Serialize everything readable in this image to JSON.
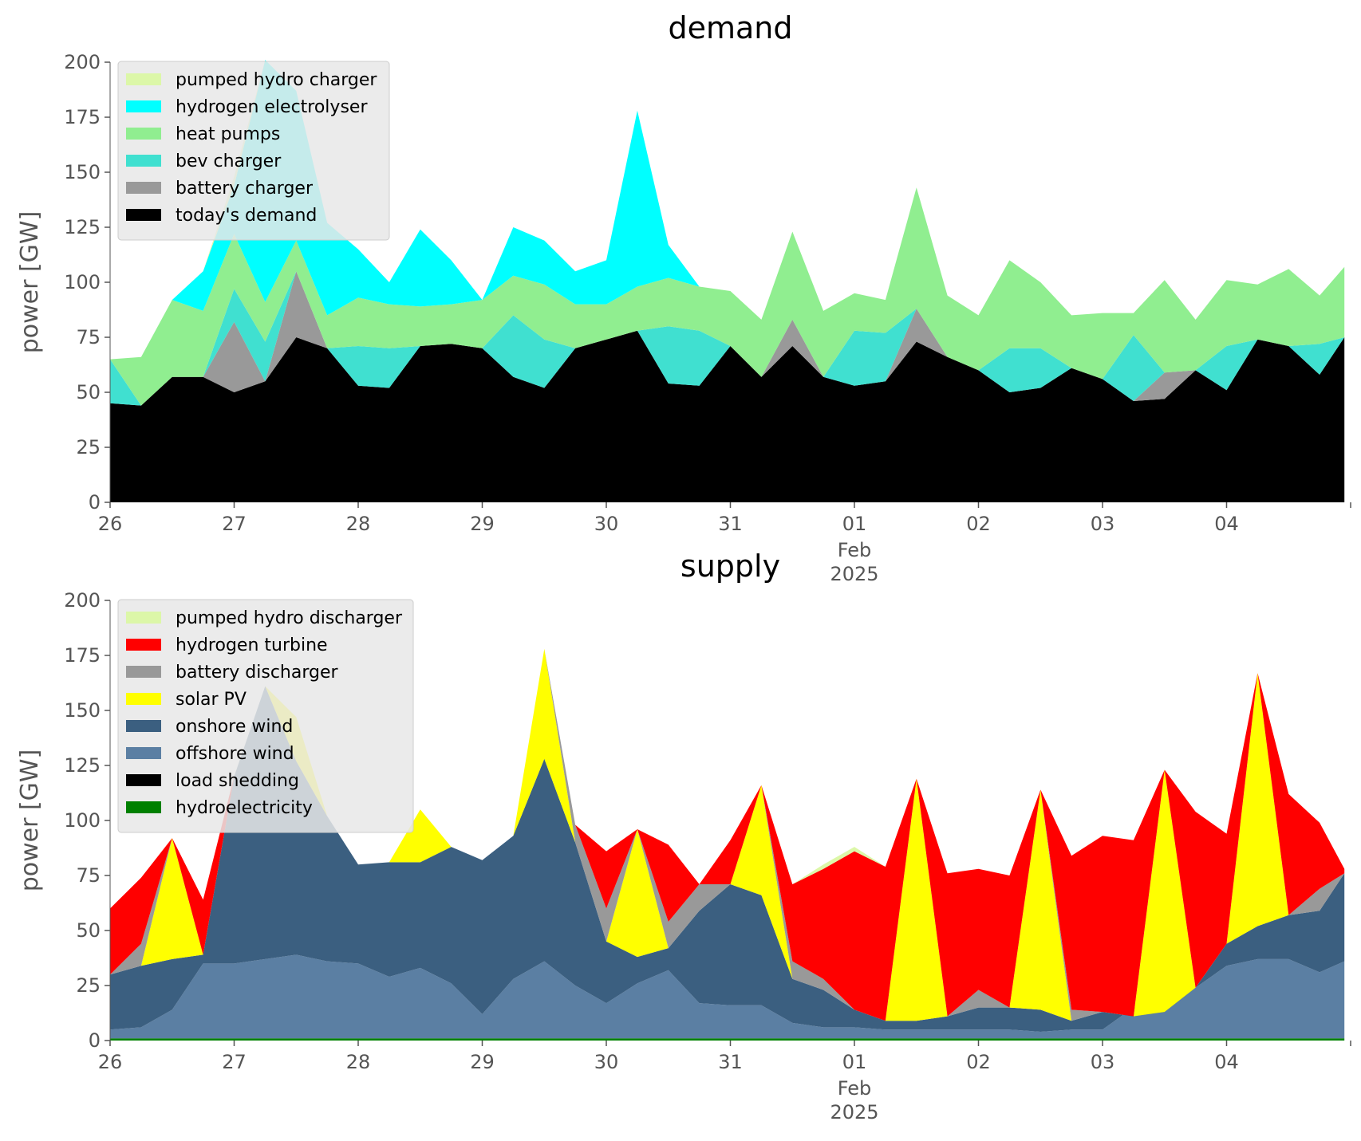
{
  "chart_data": [
    {
      "type": "area",
      "stacked": true,
      "title": "demand",
      "ylabel": "power [GW]",
      "xlabel": "",
      "ylim": [
        0,
        200
      ],
      "yticks": [
        0,
        25,
        50,
        75,
        100,
        125,
        150,
        175,
        200
      ],
      "xlim": [
        "2025-01-26",
        "2025-02-05"
      ],
      "xtick_labels": [
        "26",
        "27",
        "28",
        "29",
        "30",
        "31",
        "01",
        "02",
        "03",
        "04"
      ],
      "xtick_sublabel": {
        "label": "01",
        "month": "Feb",
        "year": "2025"
      },
      "legend_position": "upper-left",
      "grid": false,
      "x_days": [
        0,
        0.25,
        0.5,
        0.75,
        1,
        1.25,
        1.5,
        1.75,
        2,
        2.25,
        2.5,
        2.75,
        3,
        3.25,
        3.5,
        3.75,
        4,
        4.25,
        4.5,
        4.75,
        5,
        5.25,
        5.5,
        5.75,
        6,
        6.25,
        6.5,
        6.75,
        7,
        7.25,
        7.5,
        7.75,
        8,
        8.25,
        8.5,
        8.75,
        9,
        9.25,
        9.5,
        9.75,
        9.95
      ],
      "series": [
        {
          "name": "today's demand",
          "color": "#000000",
          "values": [
            45,
            44,
            57,
            57,
            50,
            55,
            75,
            70,
            53,
            52,
            71,
            72,
            70,
            57,
            52,
            70,
            74,
            78,
            54,
            53,
            71,
            57,
            71,
            57,
            53,
            55,
            73,
            66,
            60,
            50,
            52,
            61,
            56,
            46,
            47,
            60,
            51,
            74,
            71,
            58,
            75
          ]
        },
        {
          "name": "battery charger",
          "color": "#999999",
          "values": [
            0,
            0,
            0,
            0,
            32,
            0,
            30,
            0,
            0,
            0,
            0,
            0,
            0,
            0,
            0,
            0,
            0,
            0,
            0,
            0,
            0,
            0,
            12,
            0,
            0,
            0,
            15,
            0,
            0,
            0,
            0,
            0,
            0,
            0,
            12,
            0,
            0,
            0,
            0,
            0,
            0
          ]
        },
        {
          "name": "bev charger",
          "color": "#40E0D0",
          "values": [
            20,
            0,
            0,
            0,
            15,
            18,
            0,
            0,
            18,
            18,
            0,
            0,
            0,
            28,
            22,
            0,
            0,
            0,
            26,
            25,
            0,
            0,
            0,
            0,
            25,
            22,
            0,
            0,
            0,
            20,
            18,
            0,
            0,
            30,
            0,
            0,
            20,
            0,
            0,
            14,
            0
          ]
        },
        {
          "name": "heat pumps",
          "color": "#90EE90",
          "values": [
            0,
            22,
            35,
            30,
            25,
            18,
            14,
            15,
            22,
            20,
            18,
            18,
            22,
            18,
            25,
            20,
            16,
            20,
            22,
            20,
            25,
            26,
            40,
            30,
            17,
            15,
            55,
            28,
            25,
            40,
            30,
            24,
            30,
            10,
            42,
            23,
            30,
            25,
            35,
            22,
            32
          ]
        },
        {
          "name": "hydrogen electrolyser",
          "color": "#00FFFF",
          "values": [
            0,
            0,
            0,
            18,
            22,
            110,
            68,
            42,
            22,
            10,
            35,
            20,
            0,
            22,
            20,
            15,
            20,
            80,
            15,
            0,
            0,
            0,
            0,
            0,
            0,
            0,
            0,
            0,
            0,
            0,
            0,
            0,
            0,
            0,
            0,
            0,
            0,
            0,
            0,
            0,
            0
          ]
        },
        {
          "name": "pumped hydro charger",
          "color": "#DCF7A8",
          "values": [
            0,
            0,
            0,
            0,
            4,
            0,
            0,
            0,
            0,
            0,
            0,
            0,
            0,
            0,
            0,
            0,
            0,
            0,
            0,
            0,
            0,
            0,
            0,
            0,
            0,
            0,
            0,
            0,
            0,
            0,
            0,
            0,
            0,
            0,
            0,
            0,
            0,
            0,
            0,
            0,
            0
          ]
        }
      ],
      "legend_order": [
        "pumped hydro charger",
        "hydrogen electrolyser",
        "heat pumps",
        "bev charger",
        "battery charger",
        "today's demand"
      ]
    },
    {
      "type": "area",
      "stacked": true,
      "title": "supply",
      "ylabel": "power [GW]",
      "xlabel": "",
      "ylim": [
        0,
        200
      ],
      "yticks": [
        0,
        25,
        50,
        75,
        100,
        125,
        150,
        175,
        200
      ],
      "xlim": [
        "2025-01-26",
        "2025-02-05"
      ],
      "xtick_labels": [
        "26",
        "27",
        "28",
        "29",
        "30",
        "31",
        "01",
        "02",
        "03",
        "04"
      ],
      "xtick_sublabel": {
        "label": "01",
        "month": "Feb",
        "year": "2025"
      },
      "legend_position": "upper-left",
      "grid": false,
      "x_days": [
        0,
        0.25,
        0.5,
        0.75,
        1,
        1.25,
        1.5,
        1.75,
        2,
        2.25,
        2.5,
        2.75,
        3,
        3.25,
        3.5,
        3.75,
        4,
        4.25,
        4.5,
        4.75,
        5,
        5.25,
        5.5,
        5.75,
        6,
        6.25,
        6.5,
        6.75,
        7,
        7.25,
        7.5,
        7.75,
        8,
        8.25,
        8.5,
        8.75,
        9,
        9.25,
        9.5,
        9.75,
        9.95
      ],
      "series": [
        {
          "name": "hydroelectricity",
          "color": "#008000",
          "values": [
            1,
            1,
            1,
            1,
            1,
            1,
            1,
            1,
            1,
            1,
            1,
            1,
            1,
            1,
            1,
            1,
            1,
            1,
            1,
            1,
            1,
            1,
            1,
            1,
            1,
            1,
            1,
            1,
            1,
            1,
            1,
            1,
            1,
            1,
            1,
            1,
            1,
            1,
            1,
            1,
            1
          ]
        },
        {
          "name": "load shedding",
          "color": "#000000",
          "values": [
            0,
            0,
            0,
            0,
            0,
            0,
            0,
            0,
            0,
            0,
            0,
            0,
            0,
            0,
            0,
            0,
            0,
            0,
            0,
            0,
            0,
            0,
            0,
            0,
            0,
            0,
            0,
            0,
            0,
            0,
            0,
            0,
            0,
            0,
            0,
            0,
            0,
            0,
            0,
            0,
            0
          ]
        },
        {
          "name": "offshore wind",
          "color": "#5B7FA3",
          "values": [
            4,
            5,
            13,
            34,
            34,
            36,
            38,
            35,
            34,
            28,
            32,
            25,
            11,
            27,
            35,
            24,
            16,
            25,
            31,
            16,
            15,
            15,
            7,
            5,
            5,
            4,
            4,
            4,
            4,
            4,
            3,
            4,
            4,
            14,
            16,
            23,
            33,
            36,
            36,
            30,
            35
          ]
        },
        {
          "name": "onshore wind",
          "color": "#3B5F80",
          "values": [
            25,
            28,
            23,
            4,
            85,
            124,
            88,
            66,
            45,
            52,
            48,
            62,
            70,
            65,
            92,
            65,
            28,
            12,
            10,
            42,
            55,
            50,
            20,
            17,
            8,
            4,
            4,
            6,
            10,
            10,
            10,
            4,
            8,
            -4,
            -4,
            0,
            10,
            15,
            20,
            28,
            40
          ]
        },
        {
          "name": "solar PV",
          "color": "#FFFF00",
          "values": [
            0,
            0,
            55,
            0,
            0,
            0,
            20,
            0,
            0,
            0,
            24,
            0,
            0,
            0,
            50,
            0,
            0,
            58,
            0,
            0,
            0,
            50,
            0,
            0,
            0,
            0,
            110,
            0,
            0,
            0,
            100,
            0,
            0,
            0,
            110,
            0,
            0,
            115,
            0,
            0,
            0
          ]
        },
        {
          "name": "battery discharger",
          "color": "#999999",
          "values": [
            0,
            10,
            0,
            0,
            0,
            0,
            0,
            0,
            0,
            0,
            0,
            0,
            0,
            0,
            0,
            8,
            15,
            0,
            12,
            12,
            0,
            0,
            8,
            5,
            0,
            0,
            0,
            0,
            8,
            0,
            0,
            5,
            0,
            0,
            0,
            0,
            0,
            0,
            0,
            10,
            0
          ]
        },
        {
          "name": "hydrogen turbine",
          "color": "#FF0000",
          "values": [
            30,
            30,
            0,
            25,
            0,
            0,
            0,
            0,
            0,
            0,
            0,
            0,
            0,
            0,
            0,
            0,
            26,
            0,
            35,
            0,
            20,
            0,
            35,
            50,
            72,
            70,
            0,
            65,
            55,
            60,
            0,
            70,
            80,
            80,
            0,
            80,
            50,
            0,
            55,
            30,
            2
          ]
        },
        {
          "name": "pumped hydro discharger",
          "color": "#DCF7A8",
          "values": [
            0,
            0,
            0,
            0,
            0,
            0,
            0,
            0,
            0,
            0,
            0,
            0,
            0,
            0,
            0,
            0,
            0,
            0,
            0,
            0,
            0,
            0,
            0,
            2,
            2,
            0,
            0,
            0,
            0,
            0,
            0,
            0,
            0,
            0,
            0,
            0,
            0,
            0,
            0,
            0,
            0
          ]
        }
      ],
      "legend_order": [
        "pumped hydro discharger",
        "hydrogen turbine",
        "battery discharger",
        "solar PV",
        "onshore wind",
        "offshore wind",
        "load shedding",
        "hydroelectricity"
      ]
    }
  ]
}
